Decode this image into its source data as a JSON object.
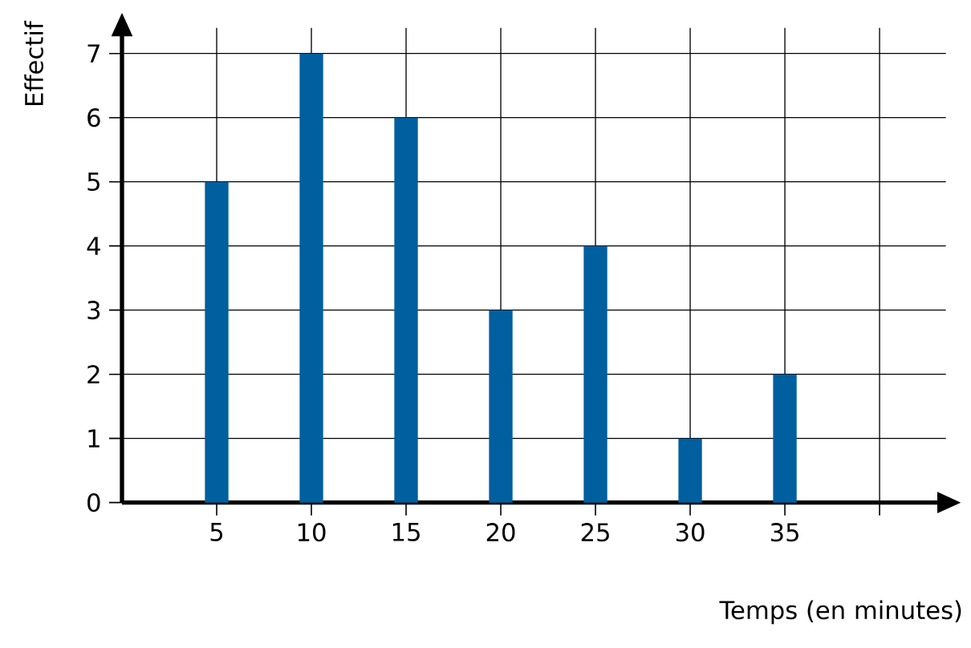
{
  "chart_data": {
    "type": "bar",
    "xlabel": "Temps (en minutes)",
    "ylabel": "Effectif",
    "x": [
      5,
      10,
      15,
      20,
      25,
      30,
      35
    ],
    "values": [
      5,
      7,
      6,
      3,
      4,
      1,
      2
    ],
    "color": "#005f9e",
    "xlim": [
      0,
      43.5
    ],
    "ylim": [
      0,
      7.4
    ],
    "xticks": [
      5,
      10,
      15,
      20,
      25,
      30,
      35,
      {
        "value": 40,
        "label": null
      }
    ],
    "yticks": [
      0,
      1,
      2,
      3,
      4,
      5,
      6,
      7
    ],
    "grid": true
  }
}
